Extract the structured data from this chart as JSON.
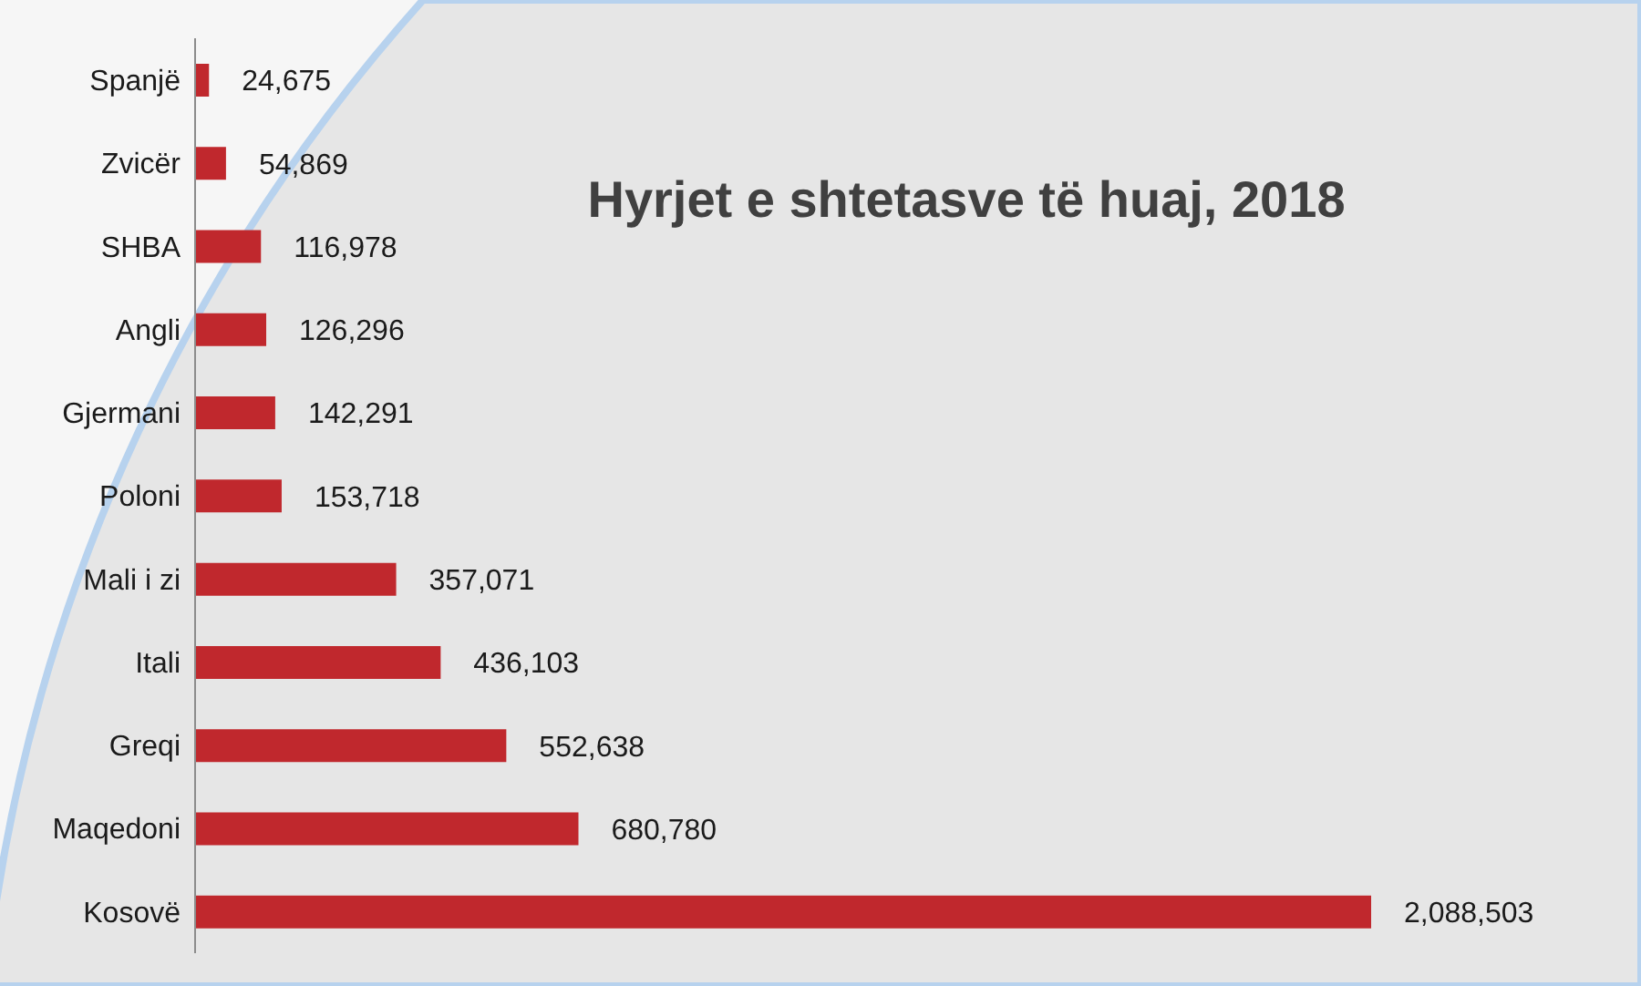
{
  "chart_data": {
    "type": "bar",
    "orientation": "horizontal",
    "title": "Hyrjet e shtetasve të huaj, 2018",
    "categories": [
      "Spanjë",
      "Zvicër",
      "SHBA",
      "Angli",
      "Gjermani",
      "Poloni",
      "Mali i zi",
      "Itali",
      "Greqi",
      "Maqedoni",
      "Kosovë"
    ],
    "values": [
      24675,
      54869,
      116978,
      126296,
      142291,
      153718,
      357071,
      436103,
      552638,
      680780,
      2088503
    ],
    "value_labels": [
      "24,675",
      "54,869",
      "116,978",
      "126,296",
      "142,291",
      "153,718",
      "357,071",
      "436,103",
      "552,638",
      "680,780",
      "2,088,503"
    ],
    "color": "#c0282d"
  }
}
